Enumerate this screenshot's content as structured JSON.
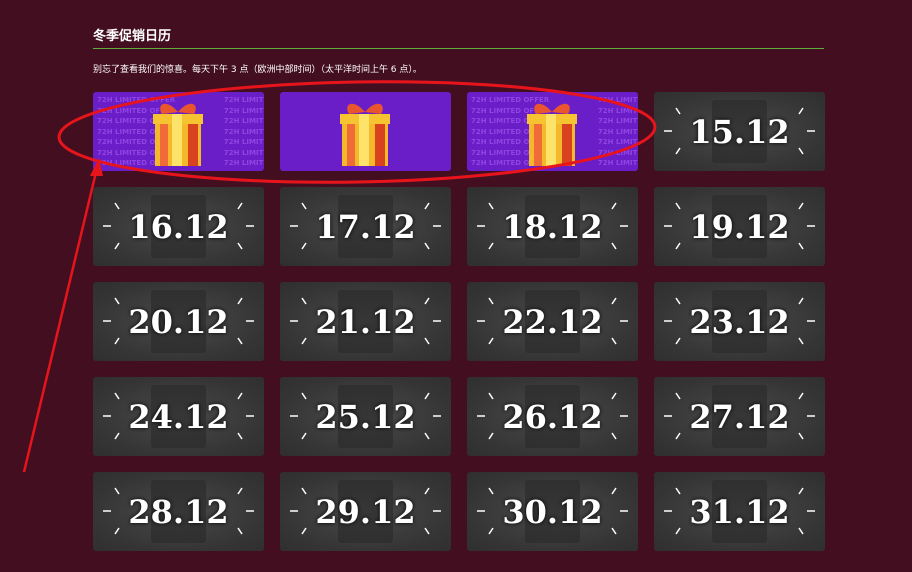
{
  "page": {
    "title": "冬季促销日历",
    "subtitle": "别忘了查看我们的惊喜。每天下午 3 点（欧洲中部时间）（太平洋时间上午 6 点）。"
  },
  "opened": [
    {
      "state": "opened",
      "watermark": "72H LIMITED OFFER"
    },
    {
      "state": "opened",
      "watermark": ""
    },
    {
      "state": "opened",
      "watermark": "72H LIMITED OFFER"
    }
  ],
  "dates": [
    "15.12",
    "16.12",
    "17.12",
    "18.12",
    "19.12",
    "20.12",
    "21.12",
    "22.12",
    "23.12",
    "24.12",
    "25.12",
    "26.12",
    "27.12",
    "28.12",
    "29.12",
    "30.12",
    "31.12"
  ],
  "colors": {
    "background": "#430f20",
    "rule": "#5fae3e",
    "opened_card": "#6a1ec8",
    "locked_card": "#3a3a3a",
    "annotation": "#e8141c"
  }
}
